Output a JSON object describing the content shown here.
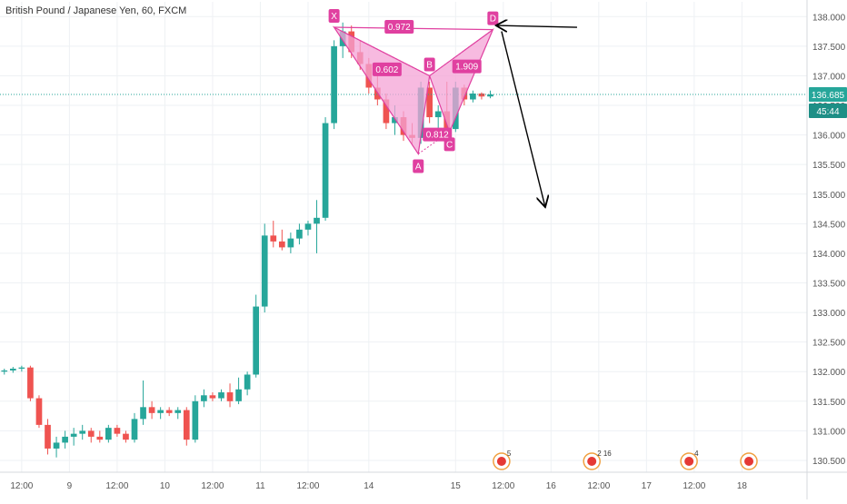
{
  "chart_data": {
    "type": "candlestick",
    "title": "British Pound / Japanese Yen, 60, FXCM",
    "colors": {
      "up": "#26a69a",
      "down": "#ef5350",
      "pattern": "#e040a0",
      "pattern_fill": "#f4a3d6",
      "grid": "#eef1f4",
      "price_line": "#26a69a",
      "arrow": "#000000",
      "event_red": "#e53935"
    },
    "y_axis": {
      "range": [
        130.3,
        138.25
      ],
      "ticks": [
        "138.000",
        "137.500",
        "137.000",
        "136.500",
        "136.000",
        "135.500",
        "135.000",
        "134.500",
        "134.000",
        "133.500",
        "133.000",
        "132.500",
        "132.000",
        "131.500",
        "131.000",
        "130.500"
      ],
      "tick_values": [
        138.0,
        137.5,
        137.0,
        136.5,
        136.0,
        135.5,
        135.0,
        134.5,
        134.0,
        133.5,
        133.0,
        132.5,
        132.0,
        131.5,
        131.0,
        130.5
      ]
    },
    "x_axis": {
      "range": [
        0,
        93
      ],
      "ticks": [
        {
          "label": "12:00",
          "x": 2.5
        },
        {
          "label": "9",
          "x": 8
        },
        {
          "label": "12:00",
          "x": 13.5
        },
        {
          "label": "10",
          "x": 19
        },
        {
          "label": "12:00",
          "x": 24.5
        },
        {
          "label": "11",
          "x": 30
        },
        {
          "label": "12:00",
          "x": 35.5
        },
        {
          "label": "14",
          "x": 42.5
        },
        {
          "label": "15",
          "x": 52.5
        },
        {
          "label": "12:00",
          "x": 58
        },
        {
          "label": "16",
          "x": 63.5
        },
        {
          "label": "12:00",
          "x": 69
        },
        {
          "label": "17",
          "x": 74.5
        },
        {
          "label": "12:00",
          "x": 80
        },
        {
          "label": "18",
          "x": 85.5
        }
      ]
    },
    "current_price": {
      "value": 136.685,
      "label": "136.685",
      "countdown": "45:44"
    },
    "candles": [
      [
        132.0,
        132.05,
        131.95,
        132.02
      ],
      [
        132.02,
        132.08,
        131.98,
        132.05
      ],
      [
        132.05,
        132.1,
        132.0,
        132.07
      ],
      [
        132.07,
        132.1,
        131.5,
        131.55
      ],
      [
        131.55,
        131.6,
        131.05,
        131.1
      ],
      [
        131.1,
        131.2,
        130.6,
        130.7
      ],
      [
        130.7,
        130.9,
        130.55,
        130.8
      ],
      [
        130.8,
        131.0,
        130.7,
        130.9
      ],
      [
        130.9,
        131.05,
        130.75,
        130.95
      ],
      [
        130.95,
        131.1,
        130.85,
        131.0
      ],
      [
        131.0,
        131.05,
        130.8,
        130.9
      ],
      [
        130.9,
        131.0,
        130.8,
        130.85
      ],
      [
        130.85,
        131.1,
        130.8,
        131.05
      ],
      [
        131.05,
        131.1,
        130.9,
        130.95
      ],
      [
        130.95,
        131.0,
        130.8,
        130.85
      ],
      [
        130.85,
        131.3,
        130.8,
        131.2
      ],
      [
        131.2,
        131.85,
        131.1,
        131.4
      ],
      [
        131.4,
        131.5,
        131.2,
        131.3
      ],
      [
        131.3,
        131.4,
        131.2,
        131.35
      ],
      [
        131.35,
        131.4,
        131.25,
        131.3
      ],
      [
        131.3,
        131.4,
        131.2,
        131.35
      ],
      [
        131.35,
        131.4,
        130.75,
        130.85
      ],
      [
        130.85,
        131.6,
        130.8,
        131.5
      ],
      [
        131.5,
        131.7,
        131.4,
        131.6
      ],
      [
        131.6,
        131.65,
        131.5,
        131.55
      ],
      [
        131.55,
        131.7,
        131.5,
        131.65
      ],
      [
        131.65,
        131.8,
        131.4,
        131.5
      ],
      [
        131.5,
        131.9,
        131.45,
        131.7
      ],
      [
        131.7,
        132.0,
        131.6,
        131.95
      ],
      [
        131.95,
        133.3,
        131.9,
        133.1
      ],
      [
        133.1,
        134.5,
        133.0,
        134.3
      ],
      [
        134.3,
        134.55,
        134.1,
        134.2
      ],
      [
        134.2,
        134.4,
        134.05,
        134.1
      ],
      [
        134.1,
        134.35,
        134.0,
        134.25
      ],
      [
        134.25,
        134.5,
        134.15,
        134.4
      ],
      [
        134.4,
        134.55,
        134.3,
        134.5
      ],
      [
        134.5,
        134.9,
        134.0,
        134.6
      ],
      [
        134.6,
        136.3,
        134.55,
        136.2
      ],
      [
        136.2,
        137.6,
        136.1,
        137.5
      ],
      [
        137.5,
        137.9,
        137.3,
        137.75
      ],
      [
        137.75,
        137.85,
        137.3,
        137.4
      ],
      [
        137.4,
        137.6,
        137.1,
        137.2
      ],
      [
        137.2,
        137.3,
        136.7,
        136.8
      ],
      [
        136.8,
        137.0,
        136.5,
        136.6
      ],
      [
        136.6,
        136.7,
        136.1,
        136.2
      ],
      [
        136.2,
        136.5,
        136.0,
        136.3
      ],
      [
        136.3,
        136.4,
        135.9,
        136.0
      ],
      [
        136.0,
        136.2,
        135.85,
        135.95
      ],
      [
        135.95,
        136.9,
        135.85,
        136.8
      ],
      [
        136.8,
        136.9,
        136.2,
        136.3
      ],
      [
        136.3,
        136.5,
        136.1,
        136.4
      ],
      [
        136.4,
        136.9,
        136.0,
        136.1
      ],
      [
        136.1,
        136.9,
        136.05,
        136.8
      ],
      [
        136.8,
        136.85,
        136.5,
        136.6
      ],
      [
        136.6,
        136.75,
        136.55,
        136.7
      ],
      [
        136.7,
        136.72,
        136.6,
        136.65
      ],
      [
        136.65,
        136.75,
        136.62,
        136.685
      ]
    ],
    "pattern": {
      "points": [
        {
          "label": "X",
          "x": 38.5,
          "y": 137.82
        },
        {
          "label": "A",
          "x": 48.2,
          "y": 135.68
        },
        {
          "label": "B",
          "x": 49.5,
          "y": 137.0
        },
        {
          "label": "C",
          "x": 51.8,
          "y": 136.05
        },
        {
          "label": "D",
          "x": 56.8,
          "y": 137.78
        }
      ],
      "ratios": [
        {
          "label": "0.602",
          "x": 44.6,
          "y": 137.1
        },
        {
          "label": "0.972",
          "x": 46.0,
          "y": 137.82
        },
        {
          "label": "0.812",
          "x": 50.4,
          "y": 136.0
        },
        {
          "label": "1.909",
          "x": 53.8,
          "y": 137.15
        }
      ]
    },
    "annotations": [
      {
        "type": "arrow",
        "from": [
          66.5,
          137.82
        ],
        "to": [
          57.3,
          137.85
        ]
      },
      {
        "type": "arrow",
        "from": [
          57.8,
          137.75
        ],
        "to": [
          62.8,
          134.8
        ]
      }
    ],
    "events": [
      {
        "x": 57.8,
        "label": "5"
      },
      {
        "x": 68.2,
        "label": "2 16"
      },
      {
        "x": 79.4,
        "label": "4"
      },
      {
        "x": 86.3,
        "label": ""
      }
    ]
  }
}
